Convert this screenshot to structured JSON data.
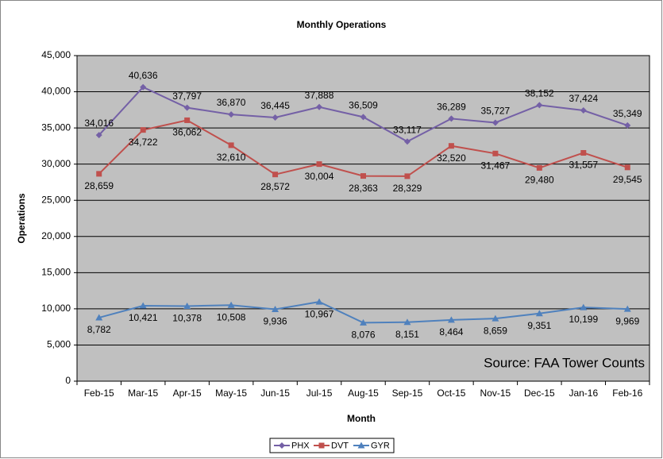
{
  "chart_data": {
    "type": "line",
    "title": "Monthly Operations",
    "x_label": "Month",
    "y_label": "Operations",
    "annotation": "Source: FAA Tower Counts",
    "categories": [
      "Feb-15",
      "Mar-15",
      "Apr-15",
      "May-15",
      "Jun-15",
      "Jul-15",
      "Aug-15",
      "Sep-15",
      "Oct-15",
      "Nov-15",
      "Dec-15",
      "Jan-16",
      "Feb-16"
    ],
    "series": [
      {
        "name": "PHX",
        "color": "#7460a6",
        "marker": "diamond",
        "values": [
          34016,
          40636,
          37797,
          36870,
          36445,
          37888,
          36509,
          33117,
          36289,
          35727,
          38152,
          37424,
          35349
        ],
        "value_labels": [
          "34,016",
          "40,636",
          "37,797",
          "36,870",
          "36,445",
          "37,888",
          "36,509",
          "33,117",
          "36,289",
          "35,727",
          "38,152",
          "37,424",
          "35,349"
        ]
      },
      {
        "name": "DVT",
        "color": "#c0504d",
        "marker": "square",
        "values": [
          28659,
          34722,
          36062,
          32610,
          28572,
          30004,
          28363,
          28329,
          32520,
          31467,
          29480,
          31557,
          29545
        ],
        "value_labels": [
          "28,659",
          "34,722",
          "36,062",
          "32,610",
          "28,572",
          "30,004",
          "28,363",
          "28,329",
          "32,520",
          "31,467",
          "29,480",
          "31,557",
          "29,545"
        ]
      },
      {
        "name": "GYR",
        "color": "#4f81bd",
        "marker": "triangle",
        "values": [
          8782,
          10421,
          10378,
          10508,
          9936,
          10967,
          8076,
          8151,
          8464,
          8659,
          9351,
          10199,
          9969
        ],
        "value_labels": [
          "8,782",
          "10,421",
          "10,378",
          "10,508",
          "9,936",
          "10,967",
          "8,076",
          "8,151",
          "8,464",
          "8,659",
          "9,351",
          "10,199",
          "9,969"
        ]
      }
    ],
    "ylim": [
      0,
      45000
    ],
    "yticks": [
      0,
      {
        "value": 5000,
        "label": "5,000"
      },
      {
        "value": 10000,
        "label": "10,000"
      },
      {
        "value": 15000,
        "label": "15,000"
      },
      {
        "value": 20000,
        "label": "20,000"
      },
      {
        "value": 25000,
        "label": "25,000"
      },
      {
        "value": 30000,
        "label": "30,000"
      },
      {
        "value": 35000,
        "label": "35,000"
      },
      {
        "value": 40000,
        "label": "40,000"
      },
      {
        "value": 45000,
        "label": "45,000"
      }
    ],
    "grid": true,
    "legend": "bottom",
    "plot_background": "#c0c0c0"
  }
}
